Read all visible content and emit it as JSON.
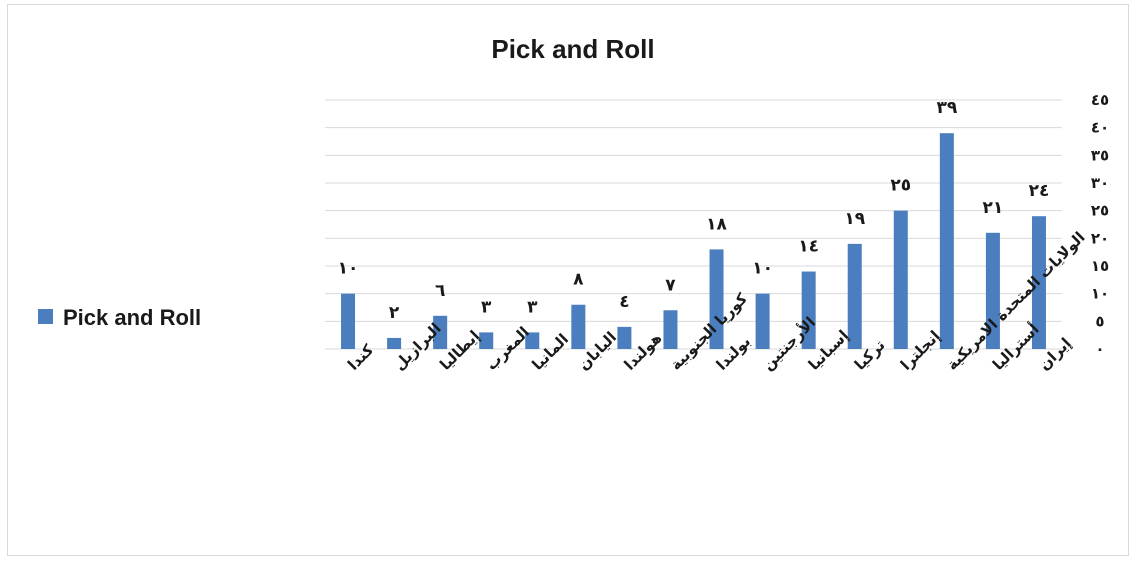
{
  "chart_data": {
    "type": "bar",
    "title": "Pick and Roll",
    "legend": {
      "position": "left",
      "entries": [
        {
          "name": "Pick and Roll",
          "color": "#4a7ebf"
        }
      ]
    },
    "categories": [
      "كندا",
      "البرازيل",
      "إيطاليا",
      "المغرب",
      "المانيا",
      "اليابان",
      "هولندا",
      "كوريا الجنوبية",
      "بولندا",
      "الأرجنتين",
      "إسبانيا",
      "تركيا",
      "إنجلترا",
      "الولايات المتحدة الامريكية",
      "أستراليا",
      "إيران"
    ],
    "series": [
      {
        "name": "Pick and Roll",
        "color": "#4a7ebf",
        "values": [
          10,
          2,
          6,
          3,
          3,
          8,
          4,
          7,
          18,
          10,
          14,
          19,
          25,
          39,
          21,
          24
        ],
        "value_labels": [
          "١٠",
          "٢",
          "٦",
          "٣",
          "٣",
          "٨",
          "٤",
          "٧",
          "١٨",
          "١٠",
          "١٤",
          "١٩",
          "٢٥",
          "٣٩",
          "٢١",
          "٢٤"
        ]
      }
    ],
    "y_axis": {
      "position": "right",
      "min": 0,
      "max": 45,
      "ticks": [
        0,
        5,
        10,
        15,
        20,
        25,
        30,
        35,
        40,
        45
      ],
      "tick_labels": [
        "٠",
        "٥",
        "١٠",
        "١٥",
        "٢٠",
        "٢٥",
        "٣٠",
        "٣٥",
        "٤٠",
        "٤٥"
      ],
      "gridlines": true
    },
    "x_axis": {
      "reversed": false
    }
  }
}
